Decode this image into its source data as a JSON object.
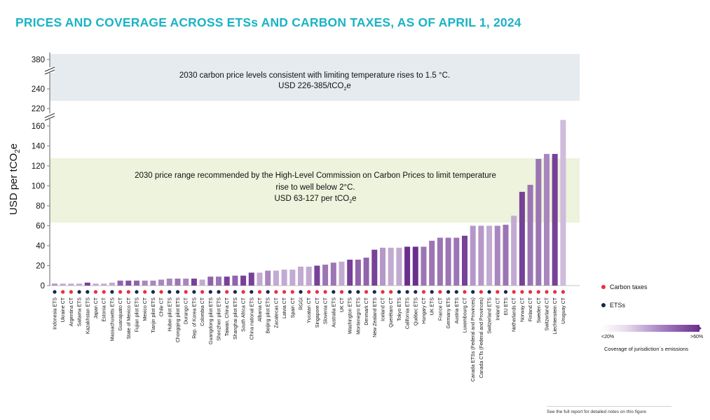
{
  "title": "PRICES AND COVERAGE ACROSS ETSs AND CARBON TAXES, AS OF APRIL 1, 2024",
  "footnote": "See the full report for detailed notes on this figure",
  "colors": {
    "title": "#1ab3c6",
    "carbon_tax": "#e8303a",
    "ets": "#14284b",
    "band_top": "#e6ebef",
    "band_mid": "#edf3dc",
    "bar_dark": "#6a2f8e",
    "bar_light": "#e6dced"
  },
  "legend": {
    "carbon_taxes": "Carbon taxes",
    "ets": "ETSs",
    "gradient_min": "<20%",
    "gradient_max": ">60%",
    "gradient_title": "Coverage of jurisdiction´s emissions"
  },
  "chart_data": {
    "type": "bar",
    "ylabel": "USD per tCO2e",
    "ylabel_main": "USD per tCO",
    "ylabel_sub": "2",
    "ylabel_tail": "e",
    "y_ticks_lower": [
      "0",
      "20",
      "40",
      "60",
      "80",
      "100",
      "120",
      "140",
      "160"
    ],
    "y_ticks_upper": [
      "220",
      "240",
      "380"
    ],
    "ylim": [
      0,
      380
    ],
    "axis_breaks": [
      "between 160 and 220",
      "between 240 and 380"
    ],
    "band_upper": {
      "range": [
        226,
        385
      ],
      "line1": "2030 carbon price levels consistent with limiting temperature rises to 1.5 °C.",
      "line2_main": "USD 226-385/tCO",
      "line2_sub": "2",
      "line2_tail": "e"
    },
    "band_middle": {
      "range": [
        63,
        127
      ],
      "line1": "2030 price range recommended by the High-Level Commission on Carbon Prices to limit temperature",
      "line2": "rise to well below 2°C.",
      "line3_main": "USD 63-127 per tCO",
      "line3_sub": "2",
      "line3_tail": "e"
    },
    "categories": [
      "Indonesia ETS",
      "Ukraine CT",
      "Argentina CT",
      "Saitama ETS",
      "Kazakhstan ETS",
      "Japan CT",
      "Estonia CT",
      "Massachusetts ETS",
      "Guanajuato CT",
      "State of Mexico CT",
      "Fujian pilot ETS",
      "Mexico CT",
      "Tianjin pilot ETS",
      "Chile CT",
      "Hubei pilot ETS",
      "Chongqing pilot ETS",
      "Durango CT",
      "Rep. of Korea ETS",
      "Colombia CT",
      "Guangdong pilot ETS",
      "Shenzhen pilot ETS",
      "Taiwan, China CT",
      "Shanghai pilot ETS",
      "South Africa CT",
      "China national ETS",
      "Albania CT",
      "Beijing pilot ETS",
      "Zacatecas CT",
      "Latvia CT",
      "Spain CT",
      "RGGI",
      "Yucatan CT",
      "Singapore CT",
      "Slovenia CT",
      "Australia ETS",
      "UK CT",
      "Washington ETS",
      "Montenegro ETS",
      "Denmark CT",
      "New Zealand ETS",
      "Iceland CT",
      "Querétaro CT",
      "Tokyo ETS",
      "California ETS",
      "Québec ETS",
      "Hungary CT",
      "UK ETS",
      "France CT",
      "Germany ETS",
      "Austria ETS",
      "Luxembourg CT",
      "Canada ETSs (Federal and Provinces)",
      "Canada CTs (Federal and Provinces)",
      "Switzerland ETS",
      "Ireland CT",
      "EU ETS",
      "Netherlands CT",
      "Norway CT",
      "Finland CT",
      "Sweden CT",
      "Switzerland CT",
      "Liechtenstein CT",
      "Uruguay CT"
    ],
    "instrument": [
      "ETS",
      "CT",
      "CT",
      "ETS",
      "ETS",
      "CT",
      "CT",
      "ETS",
      "CT",
      "CT",
      "ETS",
      "CT",
      "ETS",
      "CT",
      "ETS",
      "ETS",
      "CT",
      "ETS",
      "CT",
      "ETS",
      "ETS",
      "CT",
      "ETS",
      "CT",
      "ETS",
      "CT",
      "ETS",
      "CT",
      "CT",
      "CT",
      "ETS",
      "CT",
      "CT",
      "CT",
      "ETS",
      "CT",
      "ETS",
      "ETS",
      "CT",
      "ETS",
      "CT",
      "CT",
      "ETS",
      "ETS",
      "ETS",
      "CT",
      "ETS",
      "CT",
      "ETS",
      "ETS",
      "CT",
      "ETS",
      "CT",
      "ETS",
      "CT",
      "ETS",
      "CT",
      "CT",
      "CT",
      "CT",
      "CT",
      "CT",
      "CT"
    ],
    "values": [
      2,
      2,
      2,
      2,
      3,
      2,
      2,
      3,
      5,
      5,
      5,
      5,
      5,
      6,
      7,
      7,
      7,
      7,
      6,
      9,
      9,
      9,
      10,
      10,
      13,
      13,
      15,
      15,
      16,
      16,
      19,
      19,
      20,
      21,
      23,
      24,
      26,
      26,
      28,
      36,
      38,
      38,
      38,
      39,
      39,
      39,
      45,
      48,
      48,
      48,
      50,
      60,
      60,
      60,
      60,
      61,
      70,
      94,
      101,
      127,
      132,
      132,
      167
    ],
    "coverage": [
      0.4,
      0.3,
      0.3,
      0.3,
      0.9,
      0.3,
      0.3,
      0.3,
      0.7,
      0.8,
      0.7,
      0.5,
      0.5,
      0.5,
      0.5,
      0.6,
      0.5,
      0.9,
      0.3,
      0.7,
      0.6,
      0.9,
      0.7,
      0.9,
      0.9,
      0.3,
      0.5,
      0.3,
      0.3,
      0.3,
      0.3,
      0.3,
      0.9,
      0.6,
      0.6,
      0.3,
      0.9,
      0.7,
      0.7,
      0.9,
      0.4,
      0.3,
      0.3,
      1.0,
      1.0,
      0.6,
      0.6,
      0.6,
      0.6,
      0.6,
      0.9,
      0.4,
      0.4,
      0.3,
      0.5,
      0.6,
      0.3,
      0.9,
      0.6,
      0.6,
      0.5,
      0.9,
      0.2
    ]
  }
}
